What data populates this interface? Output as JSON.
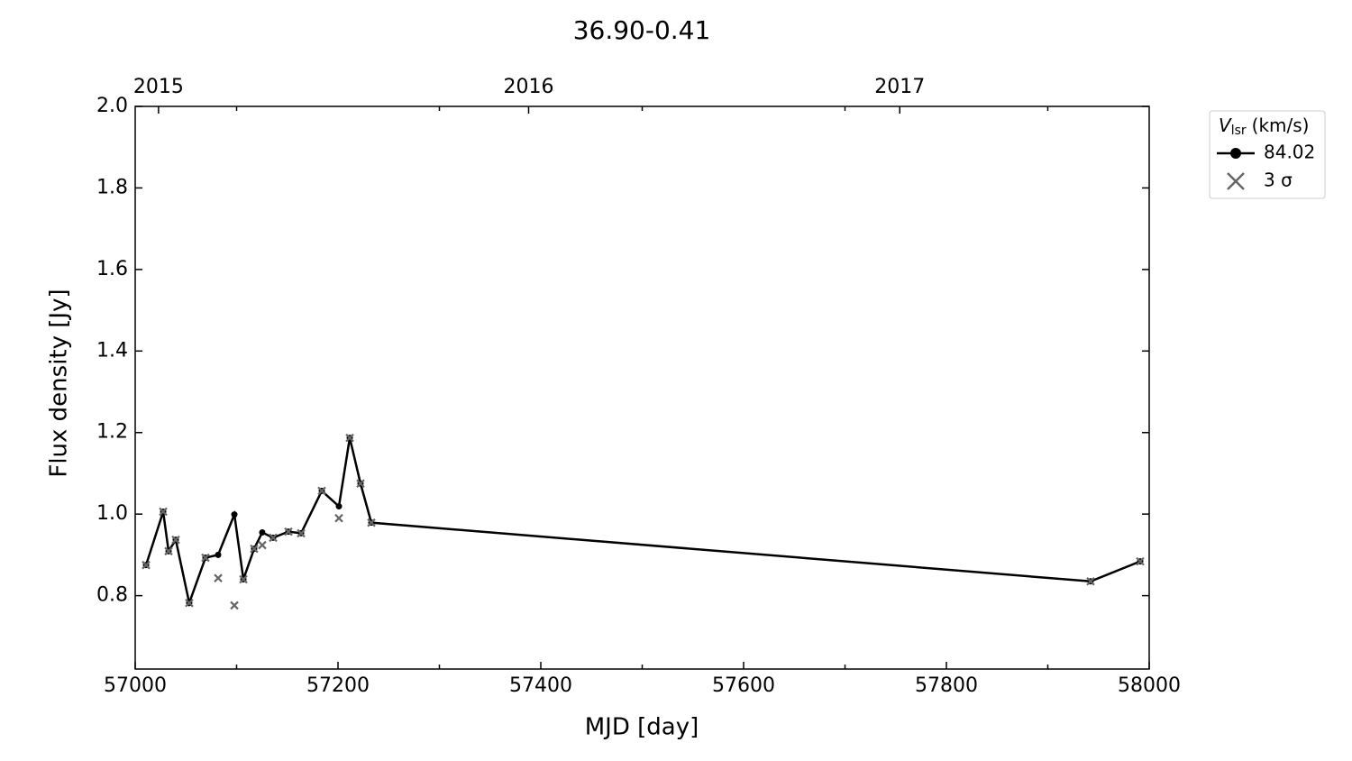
{
  "chart_data": {
    "type": "line",
    "title": "36.90-0.41",
    "x_label": "MJD [day]",
    "y_label": "Flux density [Jy]",
    "x": [
      57010.7,
      57027.6,
      57032.9,
      57040,
      57053.3,
      57069.3,
      57081.8,
      57097.8,
      57106.7,
      57117.3,
      57125.3,
      57136,
      57151.1,
      57163.6,
      57184,
      57200.9,
      57211.6,
      57222.2,
      57232.9,
      57942.2,
      57991.1
    ],
    "series": [
      {
        "name": "84.02",
        "color": "#000000",
        "marker": "dot",
        "values": [
          0.875,
          1.006,
          0.909,
          0.937,
          0.782,
          0.893,
          0.9,
          0.999,
          0.84,
          0.915,
          0.955,
          0.942,
          0.957,
          0.953,
          1.057,
          1.019,
          1.187,
          1.075,
          0.979,
          0.835,
          0.884
        ]
      },
      {
        "name": "3 σ",
        "color": "#666666",
        "marker": "cross",
        "values": [
          0.875,
          1.006,
          0.909,
          0.937,
          0.782,
          0.893,
          0.843,
          0.776,
          0.84,
          0.915,
          0.924,
          0.942,
          0.957,
          0.953,
          1.057,
          0.99,
          1.187,
          1.075,
          0.979,
          0.835,
          0.884
        ]
      }
    ],
    "xlim": [
      57000,
      58000
    ],
    "xticks": [
      57000,
      57200,
      57400,
      57600,
      57800,
      58000
    ],
    "xminorticks": [
      57100,
      57300,
      57500,
      57700,
      57900
    ],
    "x2ticks": [
      {
        "value": 57023,
        "label": "2015"
      },
      {
        "value": 57388,
        "label": "2016"
      },
      {
        "value": 57754,
        "label": "2017"
      }
    ],
    "ylim": [
      0.62,
      2.0
    ],
    "yticks": [
      0.8,
      1.0,
      1.2,
      1.4,
      1.6,
      1.8,
      2.0
    ],
    "ytick_labels": [
      "0.8",
      "1.0",
      "1.2",
      "1.4",
      "1.6",
      "1.8",
      "2.0"
    ],
    "legend_title": {
      "symbol": "V",
      "subscript": "lsr",
      "unit": "(km/s)"
    },
    "legend": "outside-upper-right",
    "grid": false
  }
}
